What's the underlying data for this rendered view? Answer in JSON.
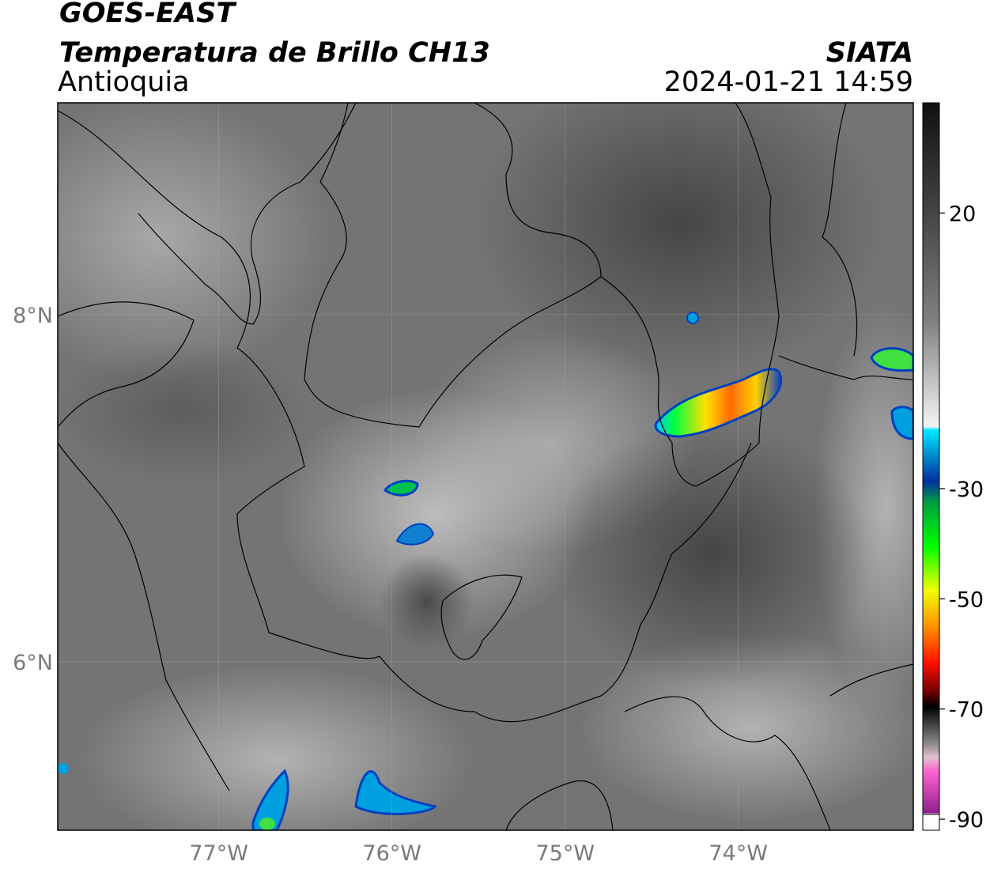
{
  "header": {
    "title": "GOES-EAST",
    "subtitle": "Temperatura de Brillo CH13",
    "region": "Antioquia",
    "source": "SIATA",
    "datetime": "2024-01-21 14:59"
  },
  "map": {
    "xlim": [
      -77.93,
      -72.99
    ],
    "ylim": [
      5.03,
      9.22
    ],
    "xticks": [
      {
        "value": -77,
        "label": "77°W"
      },
      {
        "value": -76,
        "label": "76°W"
      },
      {
        "value": -75,
        "label": "75°W"
      },
      {
        "value": -74,
        "label": "74°W"
      }
    ],
    "yticks": [
      {
        "value": 8,
        "label": "8°N"
      },
      {
        "value": 6,
        "label": "6°N"
      }
    ],
    "grid": true
  },
  "colorbar": {
    "lim": [
      -92,
      40
    ],
    "ticks": [
      20,
      -30,
      -50,
      -70,
      -90
    ]
  }
}
